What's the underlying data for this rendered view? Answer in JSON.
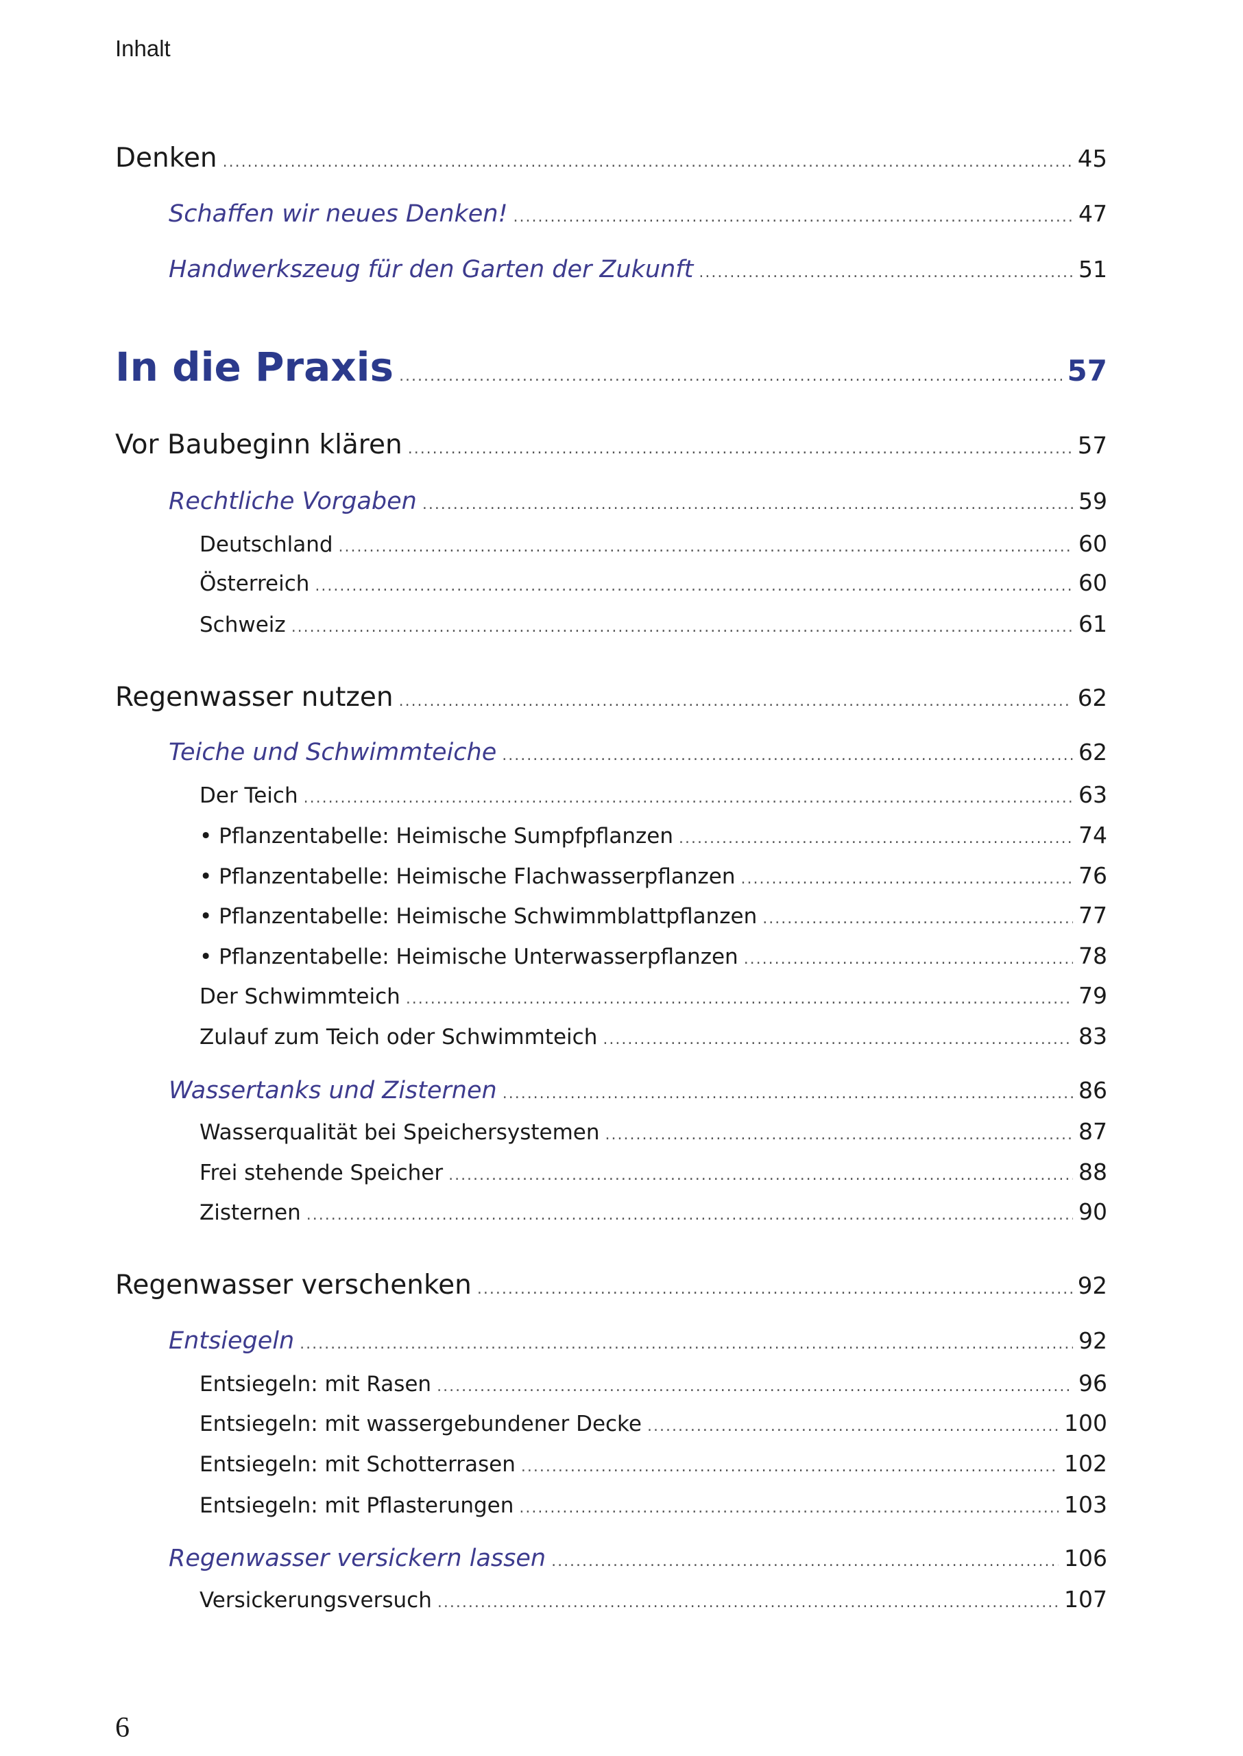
{
  "header": {
    "title": "Inhalt"
  },
  "page_number": "6",
  "colors": {
    "accent": "#2b3a8c",
    "subsection": "#3d3b8e"
  },
  "toc": [
    {
      "level": 1,
      "title": "Denken",
      "page": "45"
    },
    {
      "level": 2,
      "title": "Schaffen wir neues Denken!",
      "page": "47"
    },
    {
      "level": 2,
      "title": "Handwerkszeug für den Garten der Zukunft",
      "page": "51"
    },
    {
      "level": 0,
      "title": "In die Praxis",
      "page": "57"
    },
    {
      "level": 1,
      "title": "Vor Baubeginn klären",
      "page": "57"
    },
    {
      "level": 2,
      "title": "Rechtliche Vorgaben",
      "page": "59"
    },
    {
      "level": 3,
      "title": "Deutschland",
      "page": "60"
    },
    {
      "level": 3,
      "title": "Österreich",
      "page": "60"
    },
    {
      "level": 3,
      "title": "Schweiz",
      "page": "61"
    },
    {
      "level": 1,
      "title": "Regenwasser nutzen",
      "page": "62"
    },
    {
      "level": 2,
      "title": "Teiche und Schwimmteiche",
      "page": "62"
    },
    {
      "level": 3,
      "title": "Der Teich",
      "page": "63"
    },
    {
      "level": 3,
      "title": "• Pflanzentabelle: Heimische Sumpfpflanzen",
      "page": "74"
    },
    {
      "level": 3,
      "title": "• Pflanzentabelle: Heimische Flachwasserpflanzen",
      "page": "76"
    },
    {
      "level": 3,
      "title": "• Pflanzentabelle: Heimische Schwimmblattpflanzen",
      "page": "77"
    },
    {
      "level": 3,
      "title": "• Pflanzentabelle: Heimische Unterwasserpflanzen",
      "page": "78"
    },
    {
      "level": 3,
      "title": "Der Schwimmteich",
      "page": "79"
    },
    {
      "level": 3,
      "title": "Zulauf zum Teich oder Schwimmteich",
      "page": "83"
    },
    {
      "level": 2,
      "title": "Wassertanks und Zisternen",
      "page": "86"
    },
    {
      "level": 3,
      "title": "Wasserqualität bei Speichersystemen",
      "page": "87"
    },
    {
      "level": 3,
      "title": "Frei stehende Speicher",
      "page": "88"
    },
    {
      "level": 3,
      "title": "Zisternen",
      "page": "90"
    },
    {
      "level": 1,
      "title": "Regenwasser verschenken",
      "page": "92"
    },
    {
      "level": 2,
      "title": "Entsiegeln",
      "page": "92"
    },
    {
      "level": 3,
      "title": "Entsiegeln: mit Rasen",
      "page": "96"
    },
    {
      "level": 3,
      "title": "Entsiegeln: mit wassergebundener Decke",
      "page": "100"
    },
    {
      "level": 3,
      "title": "Entsiegeln: mit Schotterrasen",
      "page": "102"
    },
    {
      "level": 3,
      "title": "Entsiegeln: mit Pflasterungen",
      "page": "103"
    },
    {
      "level": 2,
      "title": "Regenwasser versickern lassen",
      "page": "106"
    },
    {
      "level": 3,
      "title": "Versickerungsversuch",
      "page": "107"
    }
  ]
}
